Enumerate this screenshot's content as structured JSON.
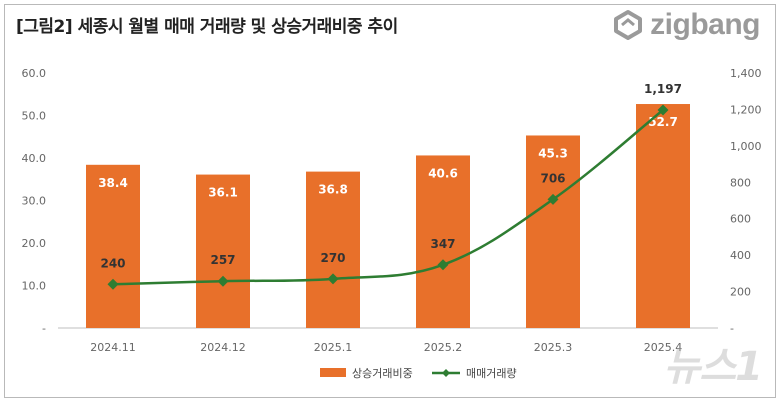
{
  "title": "[그림2] 세종시 월별 매매 거래량 및 상승거래비중 추이",
  "brand": "zigbang",
  "watermark": "뉴스1",
  "colors": {
    "bar": "#E8702A",
    "line": "#2E7D32",
    "axis_text": "#666666",
    "bar_label": "#ffffff",
    "line_label": "#333333"
  },
  "chart_data": {
    "type": "bar",
    "categories": [
      "2024.11",
      "2024.12",
      "2025.1",
      "2025.2",
      "2025.3",
      "2025.4"
    ],
    "series": [
      {
        "name": "상승거래비중",
        "type": "bar",
        "axis": "left",
        "values": [
          38.4,
          36.1,
          36.8,
          40.6,
          45.3,
          52.7
        ],
        "labels": [
          "38.4",
          "36.1",
          "36.8",
          "40.6",
          "45.3",
          "52.7"
        ]
      },
      {
        "name": "매매거래량",
        "type": "line",
        "axis": "right",
        "values": [
          240,
          257,
          270,
          347,
          706,
          1197
        ],
        "labels": [
          "240",
          "257",
          "270",
          "347",
          "706",
          "1,197"
        ]
      }
    ],
    "y_left": {
      "ylim": [
        0,
        60
      ],
      "ticks": [
        0,
        10,
        20,
        30,
        40,
        50,
        60
      ],
      "tick_labels": [
        "-",
        "10.0",
        "20.0",
        "30.0",
        "40.0",
        "50.0",
        "60.0"
      ]
    },
    "y_right": {
      "ylim": [
        0,
        1400
      ],
      "ticks": [
        0,
        200,
        400,
        600,
        800,
        1000,
        1200,
        1400
      ],
      "tick_labels": [
        "-",
        "200",
        "400",
        "600",
        "800",
        "1,000",
        "1,200",
        "1,400"
      ]
    },
    "legend": {
      "position": "bottom",
      "items": [
        "상승거래비중",
        "매매거래량"
      ]
    },
    "grid": false
  }
}
